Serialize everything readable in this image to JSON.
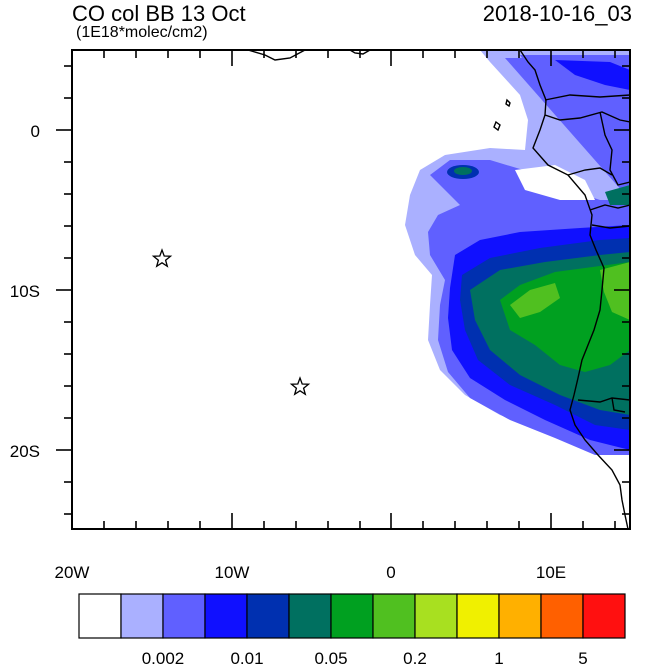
{
  "header": {
    "title": "CO col BB 13 Oct",
    "units": "(1E18*molec/cm2)",
    "datetime": "2018-10-16_03"
  },
  "axes": {
    "lon_labels": [
      "20W",
      "10W",
      "0",
      "10E"
    ],
    "lat_labels": [
      "0",
      "10S",
      "20S"
    ]
  },
  "map": {
    "lon_range": [
      -20,
      15
    ],
    "lat_range": [
      -25,
      5
    ],
    "markers": [
      {
        "name": "star-marker-1",
        "lon": -14.4,
        "lat": -8.0
      },
      {
        "name": "star-marker-2",
        "lon": -5.7,
        "lat": -16.0
      }
    ]
  },
  "colorbar": {
    "colors": [
      "#ffffff",
      "#aab0ff",
      "#6060ff",
      "#1010ff",
      "#0030b0",
      "#007060",
      "#00a020",
      "#50c020",
      "#a8e020",
      "#f0f000",
      "#ffb000",
      "#ff6000",
      "#ff1010"
    ],
    "labels": [
      "0.002",
      "0.01",
      "0.05",
      "0.2",
      "1",
      "5"
    ]
  }
}
